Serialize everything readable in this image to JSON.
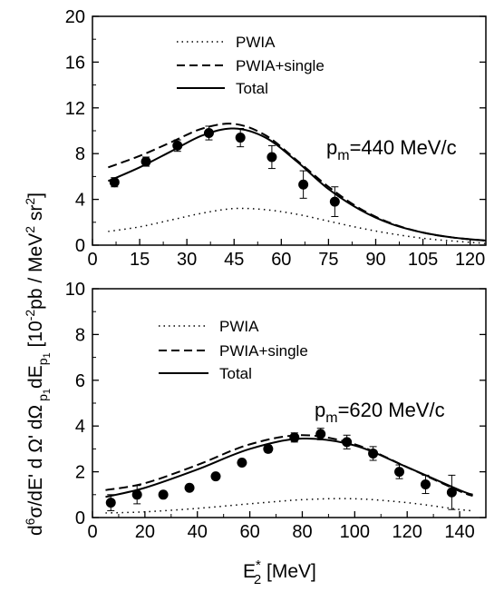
{
  "chart_data": [
    {
      "type": "line",
      "annotation": "p_m=440 MeV/c",
      "annotation_main": "p",
      "annotation_sub": "m",
      "annotation_rest": "=440 MeV/c",
      "xlim": [
        0,
        125
      ],
      "ylim": [
        0,
        20
      ],
      "xticks": [
        0,
        15,
        30,
        45,
        60,
        75,
        90,
        105,
        120
      ],
      "yticks": [
        0,
        4,
        8,
        12,
        16,
        20
      ],
      "legend_position": "top-center",
      "series": [
        {
          "name": "PWIA",
          "style": "dotted",
          "x": [
            5,
            15,
            25,
            35,
            45,
            55,
            65,
            75,
            85,
            95,
            105,
            115,
            125
          ],
          "y": [
            1.2,
            1.6,
            2.2,
            2.8,
            3.2,
            3.1,
            2.7,
            2.1,
            1.5,
            1.0,
            0.6,
            0.35,
            0.15
          ]
        },
        {
          "name": "PWIA+single",
          "style": "dashed",
          "x": [
            5,
            15,
            25,
            35,
            45,
            55,
            65,
            75,
            85,
            95,
            105,
            115,
            125
          ],
          "y": [
            6.8,
            7.8,
            9.0,
            10.2,
            10.6,
            9.6,
            7.4,
            5.1,
            3.2,
            1.9,
            1.1,
            0.65,
            0.4
          ]
        },
        {
          "name": "Total",
          "style": "solid",
          "x": [
            5,
            15,
            25,
            35,
            45,
            55,
            65,
            75,
            85,
            95,
            105,
            115,
            125
          ],
          "y": [
            5.6,
            6.8,
            8.2,
            9.6,
            10.2,
            9.4,
            7.3,
            4.9,
            3.1,
            1.85,
            1.1,
            0.65,
            0.4
          ]
        }
      ],
      "points": {
        "x": [
          7,
          17,
          27,
          37,
          47,
          57,
          67,
          77
        ],
        "y": [
          5.5,
          7.3,
          8.7,
          9.8,
          9.4,
          7.7,
          5.3,
          3.8
        ],
        "err": [
          0.4,
          0.4,
          0.5,
          0.6,
          0.8,
          1.0,
          1.2,
          1.3
        ]
      }
    },
    {
      "type": "line",
      "annotation": "p_m=620 MeV/c",
      "annotation_main": "p",
      "annotation_sub": "m",
      "annotation_rest": "=620 MeV/c",
      "xlim": [
        0,
        150
      ],
      "ylim": [
        0,
        10
      ],
      "xticks": [
        0,
        20,
        40,
        60,
        80,
        100,
        120,
        140
      ],
      "yticks": [
        0,
        2,
        4,
        6,
        8,
        10
      ],
      "legend_position": "top-center",
      "series": [
        {
          "name": "PWIA",
          "style": "dotted",
          "x": [
            5,
            20,
            40,
            60,
            80,
            100,
            120,
            140,
            145
          ],
          "y": [
            0.2,
            0.25,
            0.4,
            0.6,
            0.78,
            0.82,
            0.65,
            0.35,
            0.3
          ]
        },
        {
          "name": "PWIA+single",
          "style": "dashed",
          "x": [
            5,
            20,
            40,
            60,
            80,
            100,
            120,
            140,
            145
          ],
          "y": [
            1.2,
            1.5,
            2.3,
            3.2,
            3.6,
            3.2,
            2.2,
            1.15,
            0.95
          ]
        },
        {
          "name": "Total",
          "style": "solid",
          "x": [
            5,
            20,
            40,
            60,
            80,
            100,
            120,
            140,
            145
          ],
          "y": [
            0.9,
            1.3,
            2.1,
            3.0,
            3.45,
            3.15,
            2.2,
            1.2,
            1.0
          ]
        }
      ],
      "points": {
        "x": [
          7,
          17,
          27,
          37,
          47,
          57,
          67,
          77,
          87,
          97,
          107,
          117,
          127,
          137
        ],
        "y": [
          0.65,
          1.0,
          1.0,
          1.3,
          1.8,
          2.4,
          3.0,
          3.5,
          3.65,
          3.3,
          2.8,
          2.0,
          1.45,
          1.1
        ],
        "err": [
          0.35,
          0.4,
          0.1,
          0.1,
          0.1,
          0.1,
          0.15,
          0.2,
          0.25,
          0.3,
          0.3,
          0.3,
          0.4,
          0.75
        ]
      }
    }
  ],
  "ylabel": "d⁶σ/dE' d Ω' dΩ p₁dEp₁ [10⁻²pb / MeV² sr²]",
  "ylabel_parts": {
    "main": "d",
    "sup6": "6",
    "mid": "σ/dE' d Ω' dΩ",
    "sub_p1": "p",
    "sub_1": "1",
    "dE": "dE",
    "sub_p": "p",
    "sub_1b": "1",
    "bracket": " [10",
    "sup_m2": "-2",
    "unit": "pb / MeV",
    "sup_2a": "2",
    "sr": " sr",
    "sup_2b": "2",
    "close": "]"
  },
  "xlabel": "E*₂ [MeV]",
  "xlabel_parts": {
    "main": "E",
    "sup": "*",
    "sub": "2",
    "rest": " [MeV]"
  }
}
